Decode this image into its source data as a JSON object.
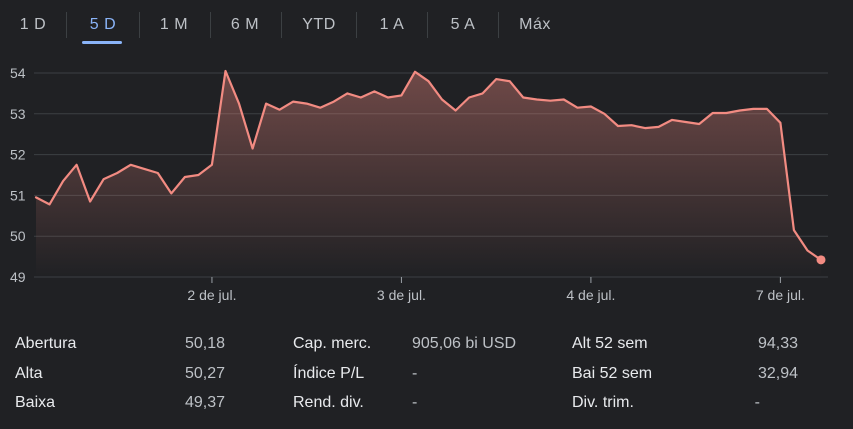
{
  "tabs": [
    {
      "label": "1 D",
      "active": false
    },
    {
      "label": "5 D",
      "active": true
    },
    {
      "label": "1 M",
      "active": false
    },
    {
      "label": "6 M",
      "active": false
    },
    {
      "label": "YTD",
      "active": false
    },
    {
      "label": "1 A",
      "active": false
    },
    {
      "label": "5 A",
      "active": false
    },
    {
      "label": "Máx",
      "active": false
    }
  ],
  "colors": {
    "line": "#f28b82",
    "accent": "#8ab4f8",
    "grid": "#3c4043",
    "background": "#202124"
  },
  "chart_data": {
    "type": "area",
    "ylim": [
      49,
      54
    ],
    "y_ticks": [
      49,
      50,
      51,
      52,
      53,
      54
    ],
    "y_tick_labels": [
      "49",
      "50",
      "51",
      "52",
      "53",
      "54"
    ],
    "x_tick_labels": [
      "2 de jul.",
      "3 de jul.",
      "4 de jul.",
      "7 de jul."
    ],
    "x_tick_positions": [
      13,
      27,
      41,
      55
    ],
    "grid": true,
    "series": [
      {
        "values": [
          50.95,
          50.78,
          51.35,
          51.75,
          50.85,
          51.4,
          51.55,
          51.75,
          51.65,
          51.55,
          51.05,
          51.45,
          51.5,
          51.75,
          54.05,
          53.25,
          52.15,
          53.25,
          53.1,
          53.3,
          53.25,
          53.15,
          53.3,
          53.5,
          53.4,
          53.55,
          53.4,
          53.45,
          54.03,
          53.8,
          53.35,
          53.08,
          53.4,
          53.5,
          53.85,
          53.8,
          53.4,
          53.35,
          53.32,
          53.35,
          53.15,
          53.18,
          53.0,
          52.7,
          52.72,
          52.65,
          52.68,
          52.85,
          52.8,
          52.75,
          53.02,
          53.02,
          53.08,
          53.12,
          53.12,
          52.78,
          50.15,
          49.65,
          49.42
        ]
      }
    ]
  },
  "stats": [
    {
      "label": "Abertura",
      "value": "50,18"
    },
    {
      "label": "Alta",
      "value": "50,27"
    },
    {
      "label": "Baixa",
      "value": "49,37"
    },
    {
      "label": "Cap. merc.",
      "value": "905,06 bi USD"
    },
    {
      "label": "Índice P/L",
      "value": "-"
    },
    {
      "label": "Rend. div.",
      "value": "-"
    },
    {
      "label": "Alt 52 sem",
      "value": "94,33"
    },
    {
      "label": "Bai 52 sem",
      "value": "32,94"
    },
    {
      "label": "Div. trim.",
      "value": "-"
    }
  ]
}
